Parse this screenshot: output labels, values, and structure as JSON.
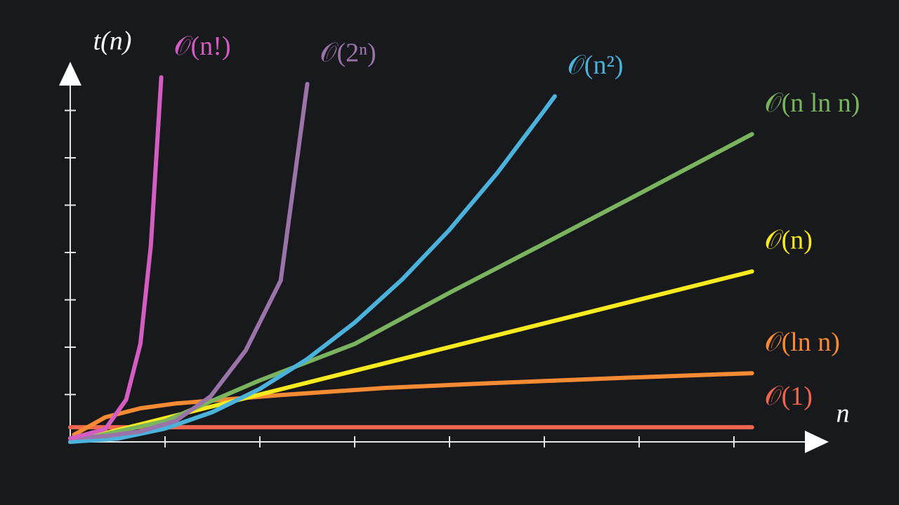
{
  "chart_data": {
    "type": "line",
    "ylabel": "t(n)",
    "xlabel": "n",
    "xlim": [
      0,
      8
    ],
    "ylim": [
      0,
      8
    ],
    "xticks": [
      1,
      2,
      3,
      4,
      5,
      6,
      7
    ],
    "yticks": [
      1,
      2,
      3,
      4,
      5,
      6,
      7
    ],
    "series": [
      {
        "name": "𝒪(1)",
        "color": "#f0664e",
        "x": [
          0,
          7.19
        ],
        "values": [
          0.31,
          0.31
        ]
      },
      {
        "name": "𝒪(ln n)",
        "color": "#f68b33",
        "x": [
          0.04,
          0.37,
          0.74,
          1.11,
          2.22,
          3.33,
          4.44,
          5.93,
          7.19
        ],
        "values": [
          0.15,
          0.52,
          0.71,
          0.81,
          0.99,
          1.14,
          1.24,
          1.36,
          1.45
        ]
      },
      {
        "name": "𝒪(n)",
        "color": "#f7ea1e",
        "x": [
          0,
          7.19
        ],
        "values": [
          0,
          3.6
        ]
      },
      {
        "name": "𝒪(n ln n)",
        "color": "#7bb45e",
        "x": [
          0,
          1,
          2,
          3,
          4,
          5,
          6,
          7.19
        ],
        "values": [
          0,
          0.44,
          1.3,
          2.07,
          3.15,
          4.19,
          5.24,
          6.5
        ]
      },
      {
        "name": "𝒪(n²)",
        "color": "#4bb3db",
        "x": [
          0,
          0.5,
          1,
          1.5,
          2,
          2.5,
          3,
          3.5,
          4,
          4.5,
          5,
          5.11
        ],
        "values": [
          0,
          0.07,
          0.28,
          0.63,
          1.12,
          1.75,
          2.52,
          3.43,
          4.48,
          5.67,
          7.0,
          7.3
        ]
      },
      {
        "name": "𝒪(2ⁿ)",
        "color": "#9a73a8",
        "x": [
          0,
          0.37,
          0.74,
          1.11,
          1.48,
          1.85,
          2.22,
          2.5
        ],
        "values": [
          0.08,
          0.12,
          0.22,
          0.44,
          0.96,
          1.93,
          3.41,
          7.56
        ]
      },
      {
        "name": "𝒪(n!)",
        "color": "#d55cc1",
        "x": [
          0,
          0.37,
          0.59,
          0.74,
          0.85,
          0.96
        ],
        "values": [
          0.07,
          0.27,
          0.89,
          2.07,
          4.15,
          7.7
        ]
      }
    ]
  }
}
